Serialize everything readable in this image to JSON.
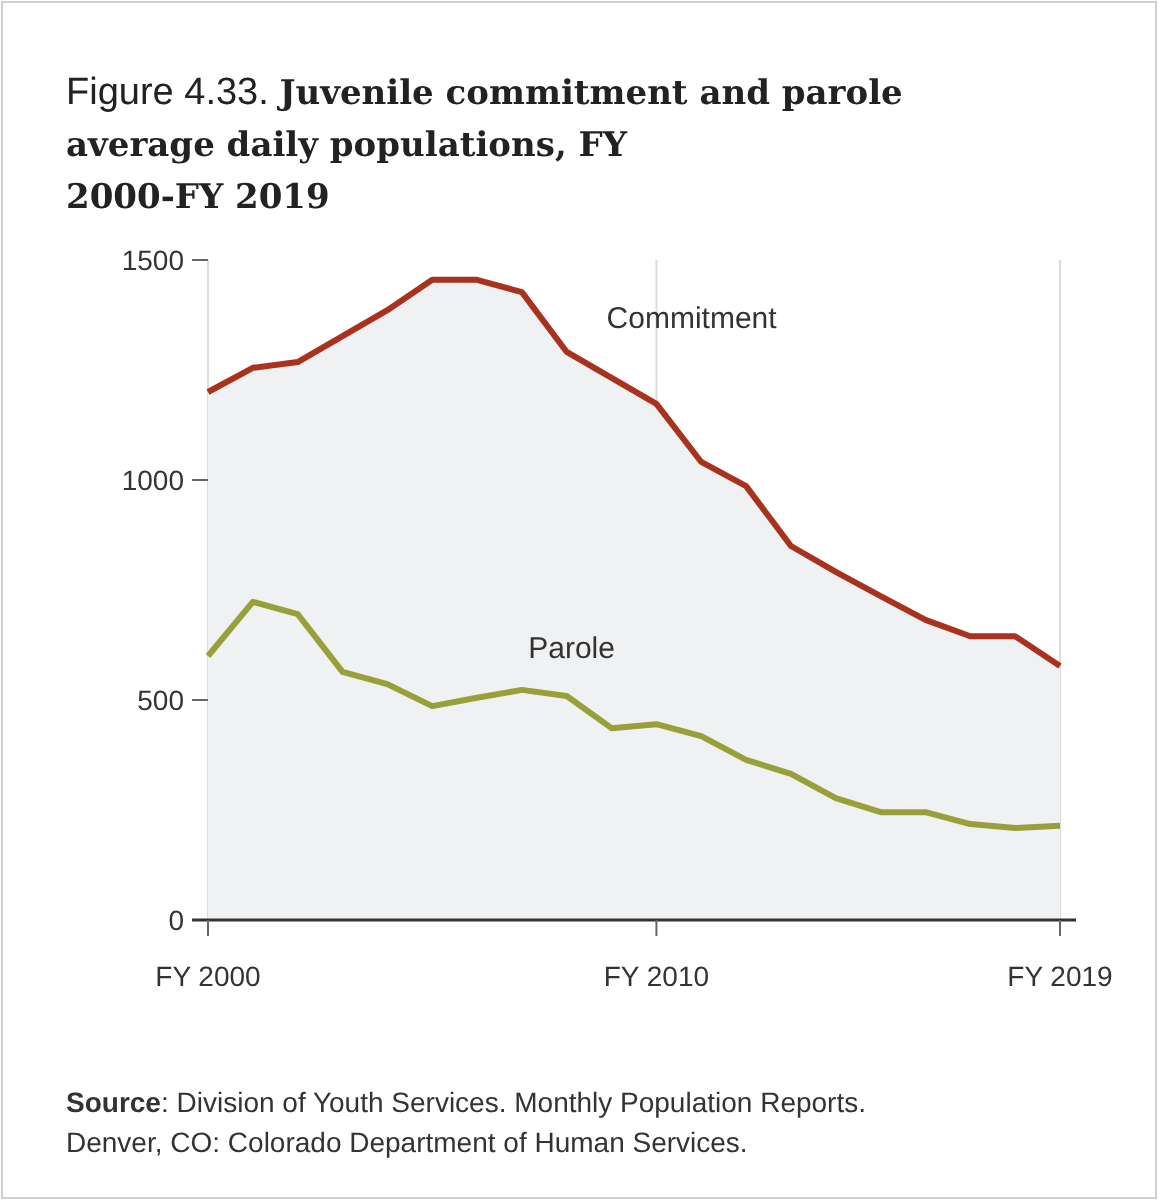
{
  "chart_data": {
    "type": "line",
    "title": "Figure 4.33. Juvenile commitment and parole average daily populations, FY 2000-FY 2019",
    "categories": [
      "FY 2000",
      null,
      null,
      null,
      null,
      null,
      null,
      null,
      null,
      null,
      "FY 2010",
      null,
      null,
      null,
      null,
      null,
      null,
      null,
      null,
      "FY 2019"
    ],
    "series": [
      {
        "name": "Commitment",
        "type": "area",
        "color": "#a8321e",
        "values": [
          1200,
          1255,
          1268,
          1327,
          1386,
          1455,
          1455,
          1427,
          1291,
          1232,
          1173,
          1041,
          986,
          850,
          791,
          736,
          682,
          645,
          645,
          577
        ]
      },
      {
        "name": "Parole",
        "color": "#98a03a",
        "values": [
          600,
          723,
          695,
          564,
          536,
          486,
          505,
          523,
          509,
          436,
          445,
          418,
          364,
          332,
          277,
          245,
          245,
          218,
          209,
          214
        ]
      }
    ],
    "ylim": [
      0,
      1500
    ],
    "yticks": [
      0,
      500,
      1000,
      1500
    ],
    "grid": "x",
    "marker": "none",
    "line_style": "solid",
    "annotations": [
      "Source: Division of Youth Services. Monthly Population Reports. Denver, CO: Colorado Department of Human Services."
    ]
  }
}
